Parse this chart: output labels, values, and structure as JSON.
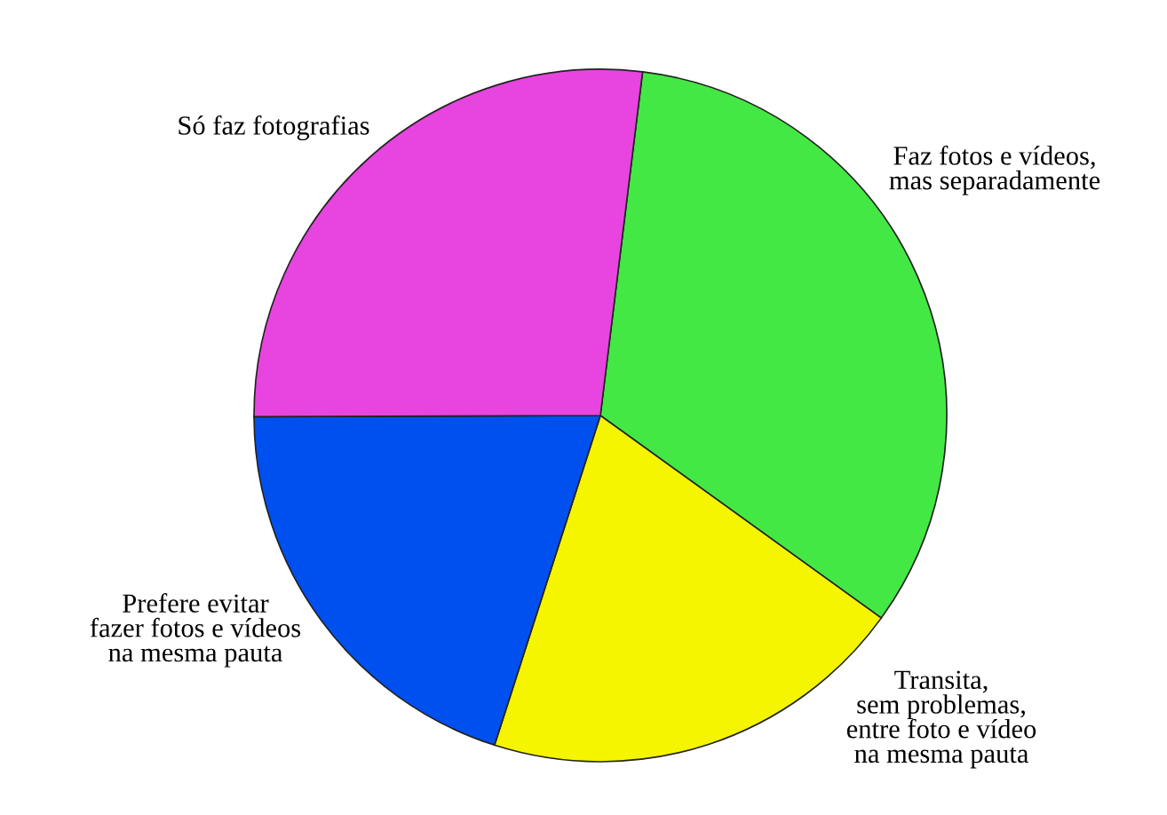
{
  "chart_data": {
    "type": "pie",
    "categories": [
      "Faz fotos e vídeos,\nmas separadamente",
      "Transita,\nsem problemas,\nentre foto e vídeo\nna mesma pauta",
      "Prefere evitar\nfazer fotos e vídeos\nna mesma pauta",
      "Só faz fotografias"
    ],
    "values": [
      33,
      20,
      20,
      27
    ],
    "colors": [
      "#44e844",
      "#f5f500",
      "#0050f0",
      "#e844e0"
    ]
  }
}
